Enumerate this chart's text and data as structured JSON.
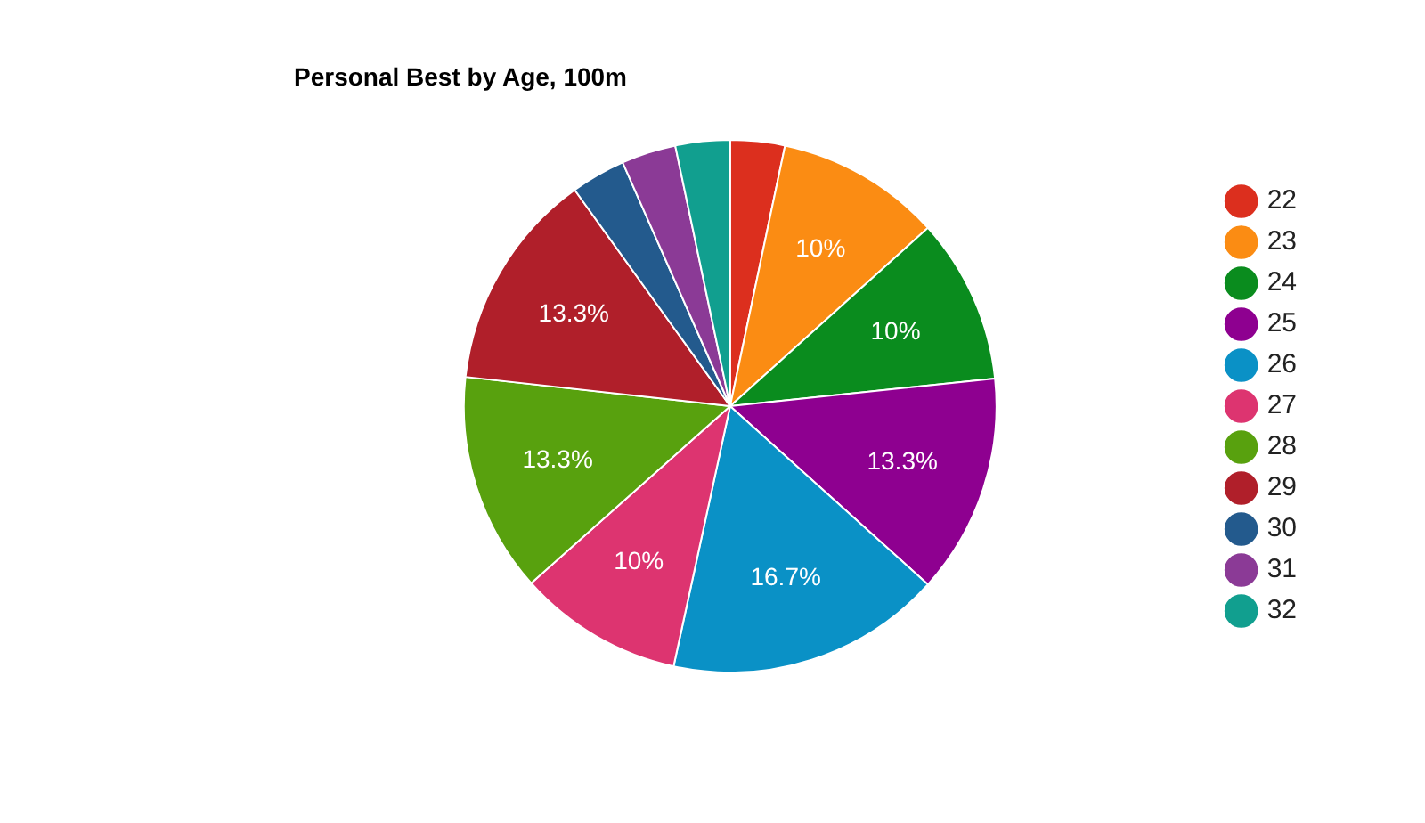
{
  "chart_data": {
    "type": "pie",
    "title": "Personal Best by Age, 100m",
    "categories": [
      "22",
      "23",
      "24",
      "25",
      "26",
      "27",
      "28",
      "29",
      "30",
      "31",
      "32"
    ],
    "values": [
      3.3,
      10,
      10,
      13.3,
      16.7,
      10,
      13.3,
      13.3,
      3.3,
      3.3,
      3.3
    ],
    "value_labels": [
      null,
      "10%",
      "10%",
      "13.3%",
      "16.7%",
      "10%",
      "13.3%",
      "13.3%",
      null,
      null,
      null
    ],
    "colors": [
      "#dc2f1e",
      "#fb8c13",
      "#0a8c1e",
      "#8e0090",
      "#0a91c6",
      "#dd3470",
      "#58a10e",
      "#b01f2a",
      "#235a8d",
      "#8b3a96",
      "#119f8f"
    ],
    "legend": "right"
  }
}
